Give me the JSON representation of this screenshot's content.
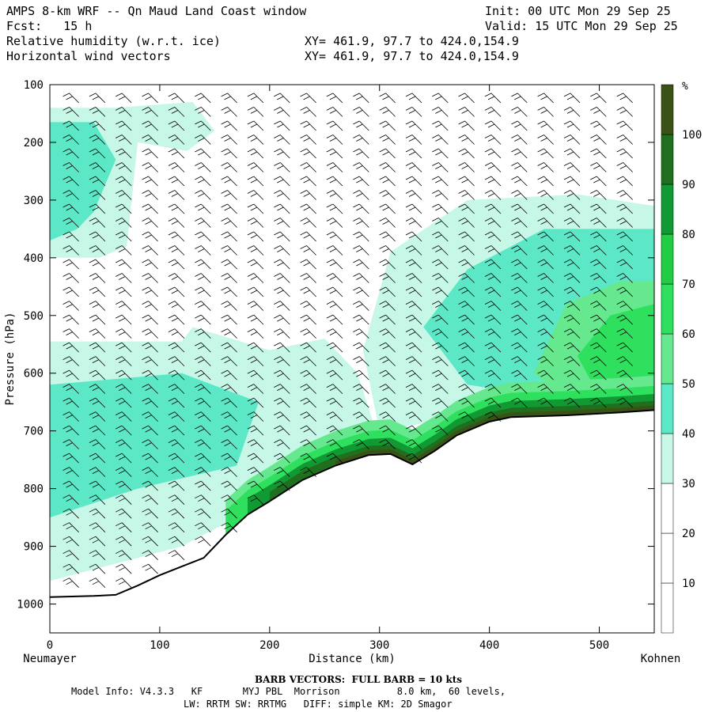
{
  "header": {
    "line1_left": "AMPS 8-km WRF -- Qn Maud Land Coast window",
    "line1_right": "Init: 00 UTC Mon 29 Sep 25",
    "line2_left": "Fcst:   15 h",
    "line2_right": "Valid: 15 UTC Mon 29 Sep 25",
    "line3_left": "Relative humidity (w.r.t. ice)",
    "line3_right": "XY= 461.9, 97.7 to 424.0,154.9",
    "line4_left": "Horizontal wind vectors",
    "line4_right": "XY= 461.9, 97.7 to 424.0,154.9"
  },
  "chart_data": {
    "type": "heatmap",
    "title": "Relative humidity (w.r.t. ice) cross-section with horizontal wind barbs",
    "xlabel": "Distance (km)",
    "ylabel": "Pressure (hPa)",
    "x_range": [
      0,
      550
    ],
    "y_range": [
      1050,
      100
    ],
    "x_ticks": [
      0,
      100,
      200,
      300,
      400,
      500
    ],
    "y_ticks": [
      100,
      200,
      300,
      400,
      500,
      600,
      700,
      800,
      900,
      1000
    ],
    "x_start_label": "Neumayer",
    "x_end_label": "Kohnen",
    "colorbar": {
      "unit": "%",
      "levels": [
        10,
        20,
        30,
        40,
        50,
        60,
        70,
        80,
        90,
        100
      ],
      "colors": [
        "#ffffff",
        "#ffffff",
        "#ffffff",
        "#c7f7e6",
        "#5ce8c6",
        "#66e88e",
        "#2fe05e",
        "#22cc44",
        "#119a33",
        "#1f6f1f",
        "#3a5216"
      ]
    },
    "terrain_pressure": [
      [
        0,
        988
      ],
      [
        40,
        986
      ],
      [
        60,
        984
      ],
      [
        80,
        968
      ],
      [
        100,
        950
      ],
      [
        120,
        935
      ],
      [
        140,
        920
      ],
      [
        160,
        880
      ],
      [
        180,
        845
      ],
      [
        200,
        822
      ],
      [
        230,
        785
      ],
      [
        260,
        760
      ],
      [
        290,
        742
      ],
      [
        310,
        740
      ],
      [
        330,
        758
      ],
      [
        350,
        735
      ],
      [
        370,
        708
      ],
      [
        400,
        684
      ],
      [
        420,
        676
      ],
      [
        470,
        673
      ],
      [
        520,
        668
      ],
      [
        550,
        664
      ]
    ],
    "barb_note": "BARB VECTORS:  FULL BARB = 10 kts"
  },
  "footer": {
    "line1": "Model Info: V4.3.3   KF       MYJ PBL  Morrison          8.0 km,  60 levels,",
    "line2": "LW: RRTM SW: RRTMG   DIFF: simple KM: 2D Smagor"
  }
}
